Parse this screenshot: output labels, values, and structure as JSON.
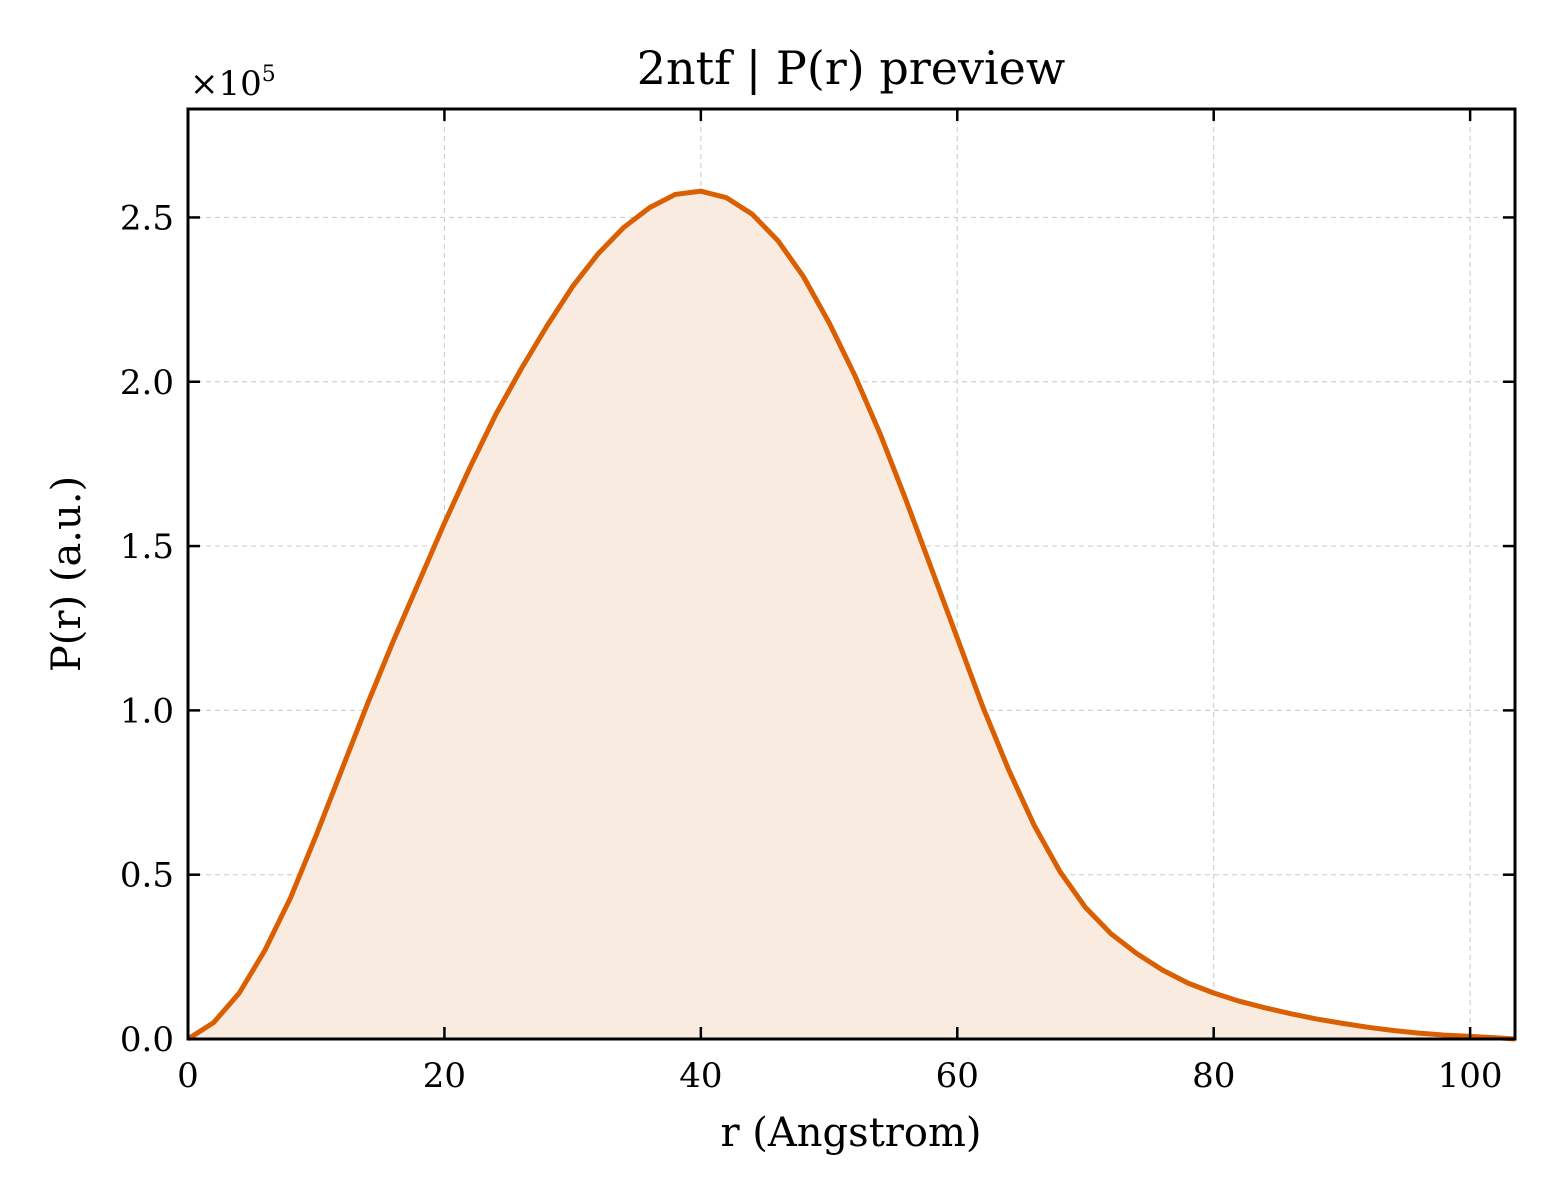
{
  "chart_data": {
    "type": "area",
    "title": "2ntf | P(r) preview",
    "xlabel": "r (Angstrom)",
    "ylabel": "P(r) (a.u.)",
    "y_multiplier": {
      "base": "×10",
      "exponent": "5"
    },
    "xlim": [
      0,
      103.5
    ],
    "ylim": [
      0,
      2.83
    ],
    "xticks": [
      0,
      20,
      40,
      60,
      80,
      100
    ],
    "xtick_labels": [
      "0",
      "20",
      "40",
      "60",
      "80",
      "100"
    ],
    "yticks": [
      0.0,
      0.5,
      1.0,
      1.5,
      2.0,
      2.5
    ],
    "ytick_labels": [
      "0.0",
      "0.5",
      "1.0",
      "1.5",
      "2.0",
      "2.5"
    ],
    "grid": true,
    "series": [
      {
        "color": "#d95f02",
        "fill_color": "#f9ebe0",
        "x": [
          0,
          2,
          4,
          6,
          8,
          10,
          12,
          14,
          16,
          18,
          20,
          22,
          24,
          26,
          28,
          30,
          32,
          34,
          36,
          38,
          40,
          42,
          44,
          46,
          48,
          50,
          52,
          54,
          56,
          58,
          60,
          62,
          64,
          66,
          68,
          70,
          72,
          74,
          76,
          78,
          80,
          82,
          84,
          86,
          88,
          90,
          92,
          94,
          96,
          98,
          100,
          102,
          103.5
        ],
        "y": [
          0.0,
          0.05,
          0.14,
          0.27,
          0.43,
          0.62,
          0.82,
          1.02,
          1.21,
          1.39,
          1.57,
          1.74,
          1.9,
          2.04,
          2.17,
          2.29,
          2.39,
          2.47,
          2.53,
          2.57,
          2.58,
          2.56,
          2.51,
          2.43,
          2.32,
          2.18,
          2.02,
          1.84,
          1.64,
          1.43,
          1.22,
          1.01,
          0.82,
          0.65,
          0.51,
          0.4,
          0.32,
          0.26,
          0.21,
          0.17,
          0.14,
          0.115,
          0.095,
          0.077,
          0.061,
          0.048,
          0.036,
          0.026,
          0.018,
          0.012,
          0.008,
          0.004,
          0.0
        ]
      }
    ]
  }
}
